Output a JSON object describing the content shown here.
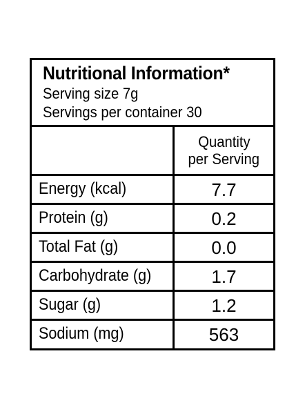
{
  "panel": {
    "title": "Nutritional Information*",
    "serving_size": "Serving size 7g",
    "servings_per_container": "Servings per container 30",
    "column_header_line1": "Quantity",
    "column_header_line2": "per Serving",
    "rows": [
      {
        "label": "Energy (kcal)",
        "value": "7.7"
      },
      {
        "label": "Protein (g)",
        "value": "0.2"
      },
      {
        "label": "Total Fat (g)",
        "value": "0.0"
      },
      {
        "label": "Carbohydrate (g)",
        "value": "1.7"
      },
      {
        "label": "Sugar (g)",
        "value": "1.2"
      },
      {
        "label": "Sodium (mg)",
        "value": "563"
      }
    ]
  }
}
